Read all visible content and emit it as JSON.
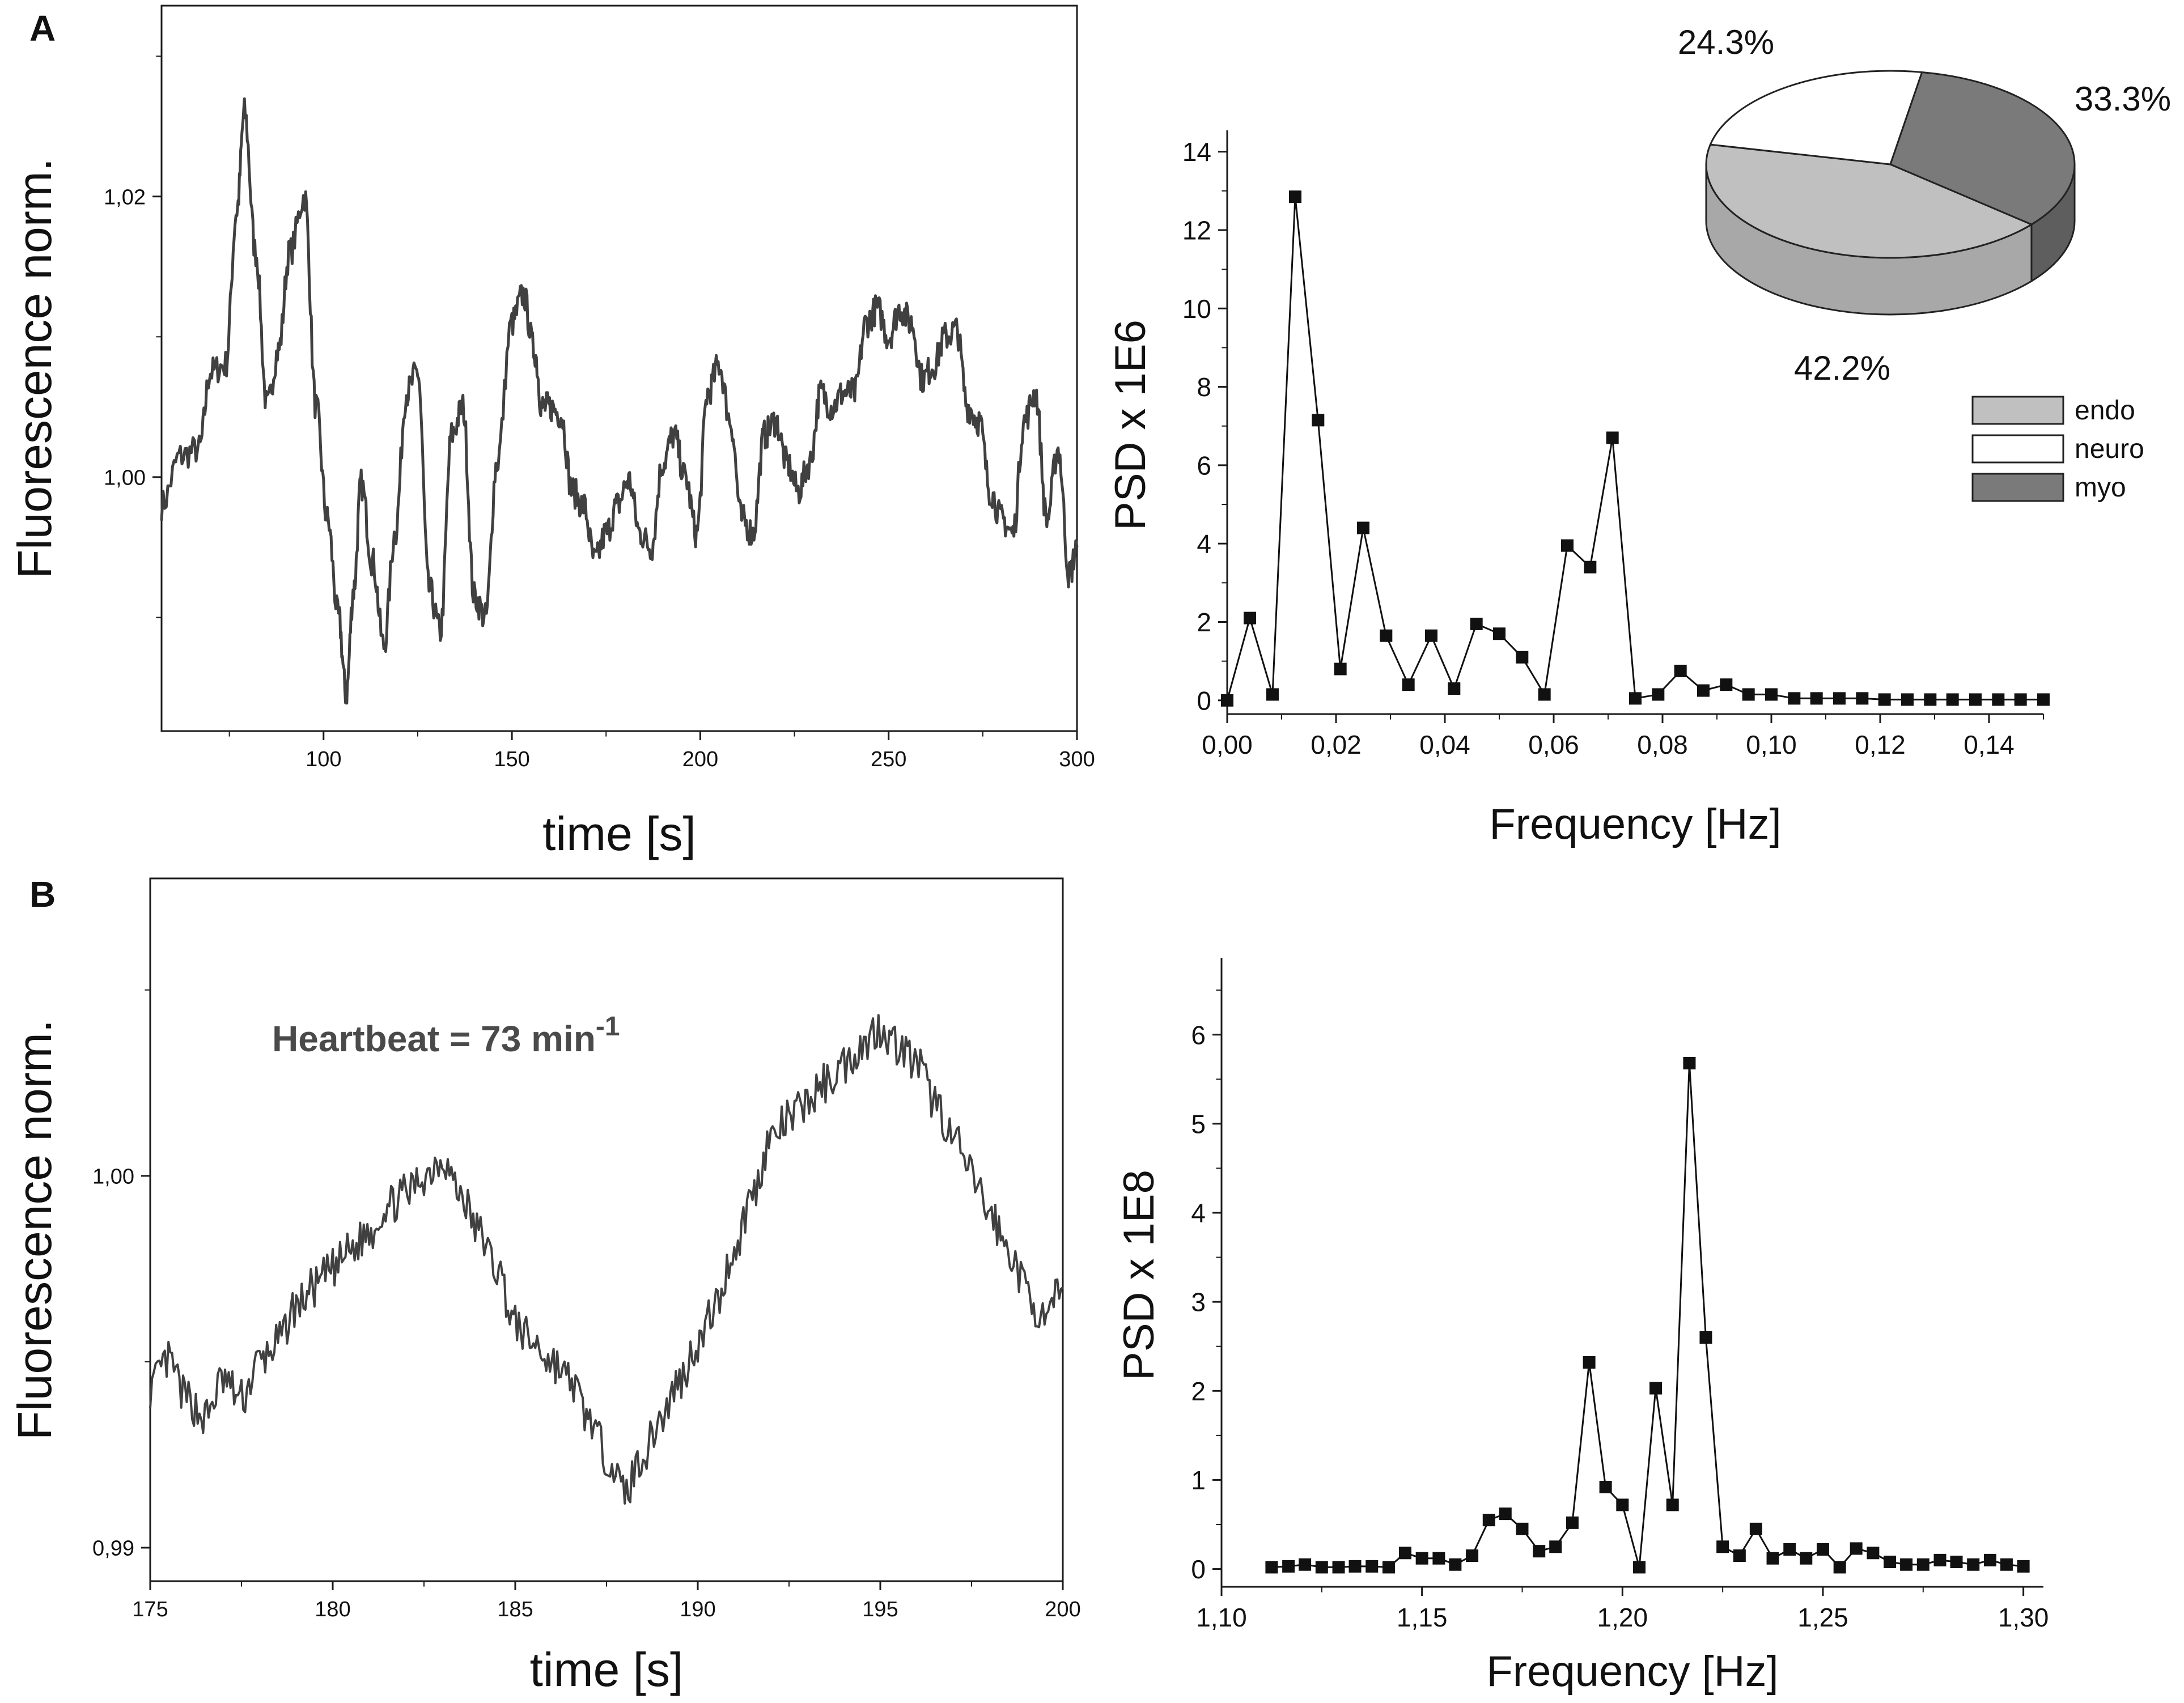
{
  "panels": [
    {
      "letter": "A"
    },
    {
      "letter": "B"
    }
  ],
  "colors": {
    "trace": "#404040",
    "axis": "#1a1a1a",
    "marker": "#111111",
    "endo": "#c0c0c0",
    "endo_side": "#a8a8a8",
    "neuro": "#ffffff",
    "myo": "#7a7a7a",
    "myo_side": "#5e5e5e"
  },
  "chart_data": [
    {
      "id": "A-trace",
      "type": "line",
      "xlabel": "time [s]",
      "ylabel": "Fluorescence norm.",
      "xlim": [
        57,
        300
      ],
      "ylim": [
        0.9819,
        1.0336
      ],
      "xticks": [
        100,
        150,
        200,
        250,
        300
      ],
      "xtick_labels": [
        "100",
        "150",
        "200",
        "250",
        "300"
      ],
      "yticks": [
        1.0,
        1.02
      ],
      "ytick_labels": [
        "1,00",
        "1,02"
      ],
      "x": [
        57,
        62,
        67,
        70,
        74,
        77,
        79,
        82,
        85,
        88,
        91,
        95,
        98,
        101,
        104,
        106,
        108,
        110,
        113,
        116,
        119,
        122,
        125,
        128,
        131,
        134,
        137,
        140,
        143,
        146,
        150,
        153,
        156,
        158,
        160,
        163,
        166,
        169,
        172,
        175,
        178,
        181,
        184,
        187,
        190,
        193,
        196,
        199,
        202,
        205,
        208,
        211,
        214,
        217,
        220,
        223,
        226,
        229,
        232,
        235,
        238,
        241,
        244,
        247,
        250,
        253,
        256,
        259,
        262,
        265,
        268,
        271,
        274,
        277,
        280,
        283,
        286,
        289,
        292,
        295,
        298,
        300
      ],
      "y": [
        0.998,
        1.0015,
        1.002,
        1.0075,
        1.008,
        1.019,
        1.026,
        1.016,
        1.005,
        1.009,
        1.016,
        1.02,
        1.005,
        0.997,
        0.99,
        0.9845,
        0.992,
        0.9995,
        0.994,
        0.988,
        0.996,
        1.006,
        1.0075,
        0.992,
        0.989,
        1.003,
        1.005,
        0.9915,
        0.99,
        1.001,
        1.011,
        1.013,
        1.009,
        1.005,
        1.005,
        1.0045,
        0.999,
        0.998,
        0.994,
        0.996,
        0.998,
        0.9998,
        0.996,
        0.995,
        1.001,
        1.003,
        1.0,
        0.996,
        1.006,
        1.008,
        1.004,
        0.997,
        0.996,
        1.003,
        1.004,
        1.001,
        0.999,
        1.001,
        1.006,
        1.005,
        1.006,
        1.006,
        1.011,
        1.012,
        1.01,
        1.012,
        1.011,
        1.007,
        1.008,
        1.01,
        1.0105,
        1.005,
        1.004,
        0.999,
        0.997,
        0.996,
        1.004,
        1.006,
        0.997,
        1.002,
        0.993,
        0.995
      ]
    },
    {
      "id": "A-psd",
      "type": "line",
      "markers": true,
      "xlabel": "Frequency [Hz]",
      "ylabel": "PSD x 1E6",
      "xlim": [
        0,
        0.15
      ],
      "ylim": [
        -0.35,
        14.4
      ],
      "xticks": [
        0,
        0.02,
        0.04,
        0.06,
        0.08,
        0.1,
        0.12,
        0.14
      ],
      "xtick_labels": [
        "0,00",
        "0,02",
        "0,04",
        "0,06",
        "0,08",
        "0,10",
        "0,12",
        "0,14"
      ],
      "yticks": [
        0,
        2,
        4,
        6,
        8,
        10,
        12,
        14
      ],
      "ytick_labels": [
        "0",
        "2",
        "4",
        "6",
        "8",
        "10",
        "12",
        "14"
      ],
      "x": [
        0,
        0.00417,
        0.00833,
        0.0125,
        0.0167,
        0.0208,
        0.025,
        0.0292,
        0.0333,
        0.0375,
        0.0417,
        0.0458,
        0.05,
        0.0542,
        0.0583,
        0.0625,
        0.0667,
        0.0708,
        0.075,
        0.0792,
        0.0833,
        0.0875,
        0.0917,
        0.0958,
        0.1,
        0.1042,
        0.1083,
        0.1125,
        0.1167,
        0.1208,
        0.125,
        0.1292,
        0.1333,
        0.1375,
        0.1417,
        0.1458,
        0.15
      ],
      "y": [
        0,
        2.1,
        0.15,
        12.85,
        7.15,
        0.8,
        4.4,
        1.65,
        0.4,
        1.65,
        0.3,
        1.95,
        1.7,
        1.1,
        0.15,
        3.95,
        3.4,
        6.7,
        0.05,
        0.15,
        0.75,
        0.25,
        0.4,
        0.15,
        0.15,
        0.05,
        0.05,
        0.05,
        0.05,
        0.02,
        0.02,
        0.02,
        0.02,
        0.02,
        0.02,
        0.02,
        0.02
      ]
    },
    {
      "id": "A-pie",
      "type": "pie",
      "labels": [
        "endo",
        "neuro",
        "myo"
      ],
      "values": [
        42.2,
        24.3,
        33.3
      ],
      "value_labels": [
        "42.2%",
        "24.3%",
        "33.3%"
      ],
      "legend": "right, below pie"
    },
    {
      "id": "B-trace",
      "type": "line",
      "xlabel": "time [s]",
      "ylabel": "Fluorescence norm.",
      "annotation": {
        "text": "Heartbeat = 73 min",
        "superscript": "-1"
      },
      "xlim": [
        175,
        200
      ],
      "ylim": [
        0.9891,
        1.008
      ],
      "xticks": [
        175,
        180,
        185,
        190,
        195,
        200
      ],
      "xtick_labels": [
        "175",
        "180",
        "185",
        "190",
        "195",
        "200"
      ],
      "yticks": [
        0.99,
        1.0
      ],
      "ytick_labels": [
        "0,99",
        "1,00"
      ],
      "x": [
        175,
        175.5,
        176,
        176.5,
        177,
        177.5,
        178,
        178.5,
        179,
        179.5,
        180,
        180.5,
        181,
        181.5,
        182,
        182.5,
        183,
        183.5,
        184,
        184.5,
        185,
        185.5,
        186,
        186.5,
        187,
        187.5,
        188,
        188.5,
        189,
        189.5,
        190,
        190.5,
        191,
        191.5,
        192,
        192.5,
        193,
        193.5,
        194,
        194.5,
        195,
        195.5,
        196,
        196.5,
        197,
        197.5,
        198,
        198.5,
        199,
        199.5,
        200
      ],
      "y": [
        0.9943,
        0.995,
        0.994,
        0.9935,
        0.9945,
        0.994,
        0.995,
        0.9955,
        0.9965,
        0.997,
        0.9975,
        0.998,
        0.9985,
        0.9992,
        0.9995,
        1.0,
        1.0005,
        0.9995,
        0.9985,
        0.9975,
        0.996,
        0.9955,
        0.995,
        0.9945,
        0.9935,
        0.9925,
        0.9915,
        0.9925,
        0.9935,
        0.9945,
        0.9955,
        0.9965,
        0.998,
        0.9995,
        1.001,
        1.0015,
        1.002,
        1.0025,
        1.003,
        1.0035,
        1.004,
        1.0035,
        1.003,
        1.002,
        1.001,
        1.0,
        0.999,
        0.998,
        0.997,
        0.996,
        0.997
      ]
    },
    {
      "id": "B-psd",
      "type": "line",
      "markers": true,
      "xlabel": "Frequency [Hz]",
      "ylabel": "PSD x 1E8",
      "xlim": [
        1.1,
        1.305
      ],
      "ylim": [
        -0.2,
        6.8
      ],
      "xticks": [
        1.1,
        1.15,
        1.2,
        1.25,
        1.3
      ],
      "xtick_labels": [
        "1,10",
        "1,15",
        "1,20",
        "1,25",
        "1,30"
      ],
      "yticks": [
        0,
        1,
        2,
        3,
        4,
        5,
        6
      ],
      "ytick_labels": [
        "0",
        "1",
        "2",
        "3",
        "4",
        "5",
        "6"
      ],
      "x": [
        1.1125,
        1.1167,
        1.1208,
        1.125,
        1.1292,
        1.1333,
        1.1375,
        1.1417,
        1.1458,
        1.15,
        1.1542,
        1.1583,
        1.1625,
        1.1667,
        1.1708,
        1.175,
        1.1792,
        1.1833,
        1.1875,
        1.1917,
        1.1958,
        1.2,
        1.2042,
        1.2083,
        1.2125,
        1.2167,
        1.2208,
        1.225,
        1.2292,
        1.2333,
        1.2375,
        1.2417,
        1.2458,
        1.25,
        1.2542,
        1.2583,
        1.2625,
        1.2667,
        1.2708,
        1.275,
        1.2792,
        1.2833,
        1.2875,
        1.2917,
        1.2958,
        1.3
      ],
      "y": [
        0.02,
        0.03,
        0.05,
        0.02,
        0.02,
        0.03,
        0.03,
        0.02,
        0.18,
        0.12,
        0.12,
        0.05,
        0.15,
        0.55,
        0.62,
        0.45,
        0.2,
        0.25,
        0.52,
        2.32,
        0.92,
        0.72,
        0.02,
        2.03,
        0.72,
        5.68,
        2.6,
        0.25,
        0.15,
        0.45,
        0.12,
        0.22,
        0.12,
        0.22,
        0.02,
        0.23,
        0.18,
        0.08,
        0.05,
        0.05,
        0.1,
        0.08,
        0.05,
        0.1,
        0.05,
        0.03
      ]
    }
  ]
}
